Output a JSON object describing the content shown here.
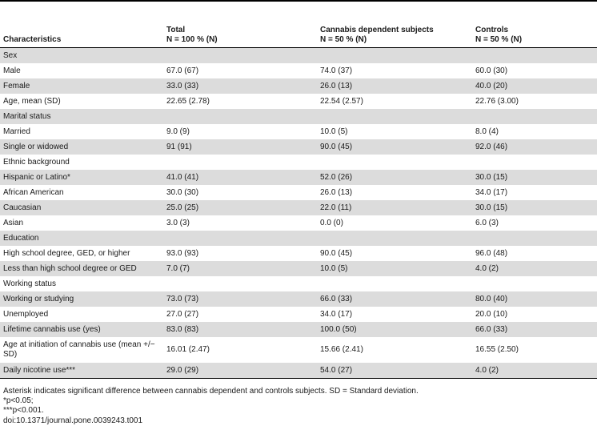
{
  "table": {
    "headers": [
      {
        "line1": "",
        "line2": "Characteristics"
      },
      {
        "line1": "Total",
        "line2": "N = 100 % (N)"
      },
      {
        "line1": "Cannabis dependent subjects",
        "line2": "N = 50 % (N)"
      },
      {
        "line1": "Controls",
        "line2": "N = 50 % (N)"
      }
    ],
    "rows": [
      {
        "cells": [
          "Sex",
          "",
          "",
          ""
        ],
        "shade": true
      },
      {
        "cells": [
          "Male",
          "67.0 (67)",
          "74.0 (37)",
          "60.0 (30)"
        ],
        "shade": false
      },
      {
        "cells": [
          "Female",
          "33.0 (33)",
          "26.0 (13)",
          "40.0 (20)"
        ],
        "shade": true
      },
      {
        "cells": [
          "Age, mean (SD)",
          "22.65 (2.78)",
          "22.54 (2.57)",
          "22.76 (3.00)"
        ],
        "shade": false
      },
      {
        "cells": [
          "Marital status",
          "",
          "",
          ""
        ],
        "shade": true
      },
      {
        "cells": [
          "Married",
          "9.0 (9)",
          "10.0 (5)",
          "8.0 (4)"
        ],
        "shade": false
      },
      {
        "cells": [
          "Single or widowed",
          "91 (91)",
          "90.0 (45)",
          "92.0 (46)"
        ],
        "shade": true
      },
      {
        "cells": [
          "Ethnic background",
          "",
          "",
          ""
        ],
        "shade": false
      },
      {
        "cells": [
          "Hispanic or Latino*",
          "41.0 (41)",
          "52.0 (26)",
          "30.0 (15)"
        ],
        "shade": true
      },
      {
        "cells": [
          "African American",
          "30.0 (30)",
          "26.0 (13)",
          "34.0 (17)"
        ],
        "shade": false
      },
      {
        "cells": [
          "Caucasian",
          "25.0 (25)",
          "22.0 (11)",
          "30.0 (15)"
        ],
        "shade": true
      },
      {
        "cells": [
          "Asian",
          "3.0 (3)",
          "0.0 (0)",
          "6.0 (3)"
        ],
        "shade": false
      },
      {
        "cells": [
          "Education",
          "",
          "",
          ""
        ],
        "shade": true
      },
      {
        "cells": [
          "High school degree, GED, or higher",
          "93.0 (93)",
          "90.0 (45)",
          "96.0 (48)"
        ],
        "shade": false
      },
      {
        "cells": [
          "Less than high school degree or GED",
          "7.0 (7)",
          "10.0 (5)",
          "4.0 (2)"
        ],
        "shade": true
      },
      {
        "cells": [
          "Working status",
          "",
          "",
          ""
        ],
        "shade": false
      },
      {
        "cells": [
          "Working or studying",
          "73.0 (73)",
          "66.0 (33)",
          "80.0 (40)"
        ],
        "shade": true
      },
      {
        "cells": [
          "Unemployed",
          "27.0 (27)",
          "34.0 (17)",
          "20.0 (10)"
        ],
        "shade": false
      },
      {
        "cells": [
          "Lifetime cannabis use (yes)",
          "83.0 (83)",
          "100.0 (50)",
          "66.0 (33)"
        ],
        "shade": true
      },
      {
        "cells": [
          "Age at initiation of cannabis use (mean +/− SD)",
          "16.01 (2.47)",
          "15.66 (2.41)",
          "16.55 (2.50)"
        ],
        "shade": false,
        "tall": true
      },
      {
        "cells": [
          "Daily nicotine use***",
          "29.0 (29)",
          "54.0 (27)",
          "4.0 (2)"
        ],
        "shade": true
      }
    ]
  },
  "footnotes": {
    "asterisk": "Asterisk indicates significant difference between cannabis dependent and controls subjects. SD = Standard deviation.",
    "p1": "*p<0.05;",
    "p2": "***p<0.001.",
    "doi": "doi:10.1371/journal.pone.0039243.t001"
  }
}
